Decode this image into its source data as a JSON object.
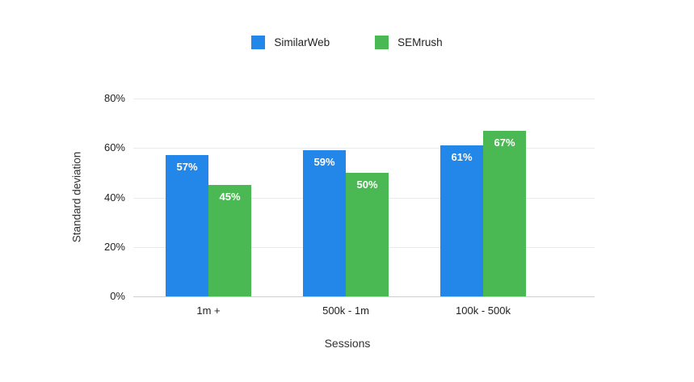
{
  "chart_data": {
    "type": "bar",
    "title": "",
    "xlabel": "Sessions",
    "ylabel": "Standard deviation",
    "categories": [
      "1m +",
      "500k - 1m",
      "100k - 500k"
    ],
    "series": [
      {
        "name": "SimilarWeb",
        "color": "#2287e8",
        "values": [
          57,
          59,
          61
        ],
        "value_labels": [
          "57%",
          "59%",
          "61%"
        ]
      },
      {
        "name": "SEMrush",
        "color": "#4ab953",
        "values": [
          45,
          50,
          67
        ],
        "value_labels": [
          "45%",
          "50%",
          "67%"
        ]
      }
    ],
    "ylim": [
      0,
      80
    ],
    "y_tick_values": [
      0,
      20,
      40,
      60,
      80
    ],
    "y_tick_labels": [
      "0%",
      "20%",
      "40%",
      "60%",
      "80%"
    ],
    "grid": true,
    "legend_position": "top",
    "bar_label_position": "inside-top"
  }
}
